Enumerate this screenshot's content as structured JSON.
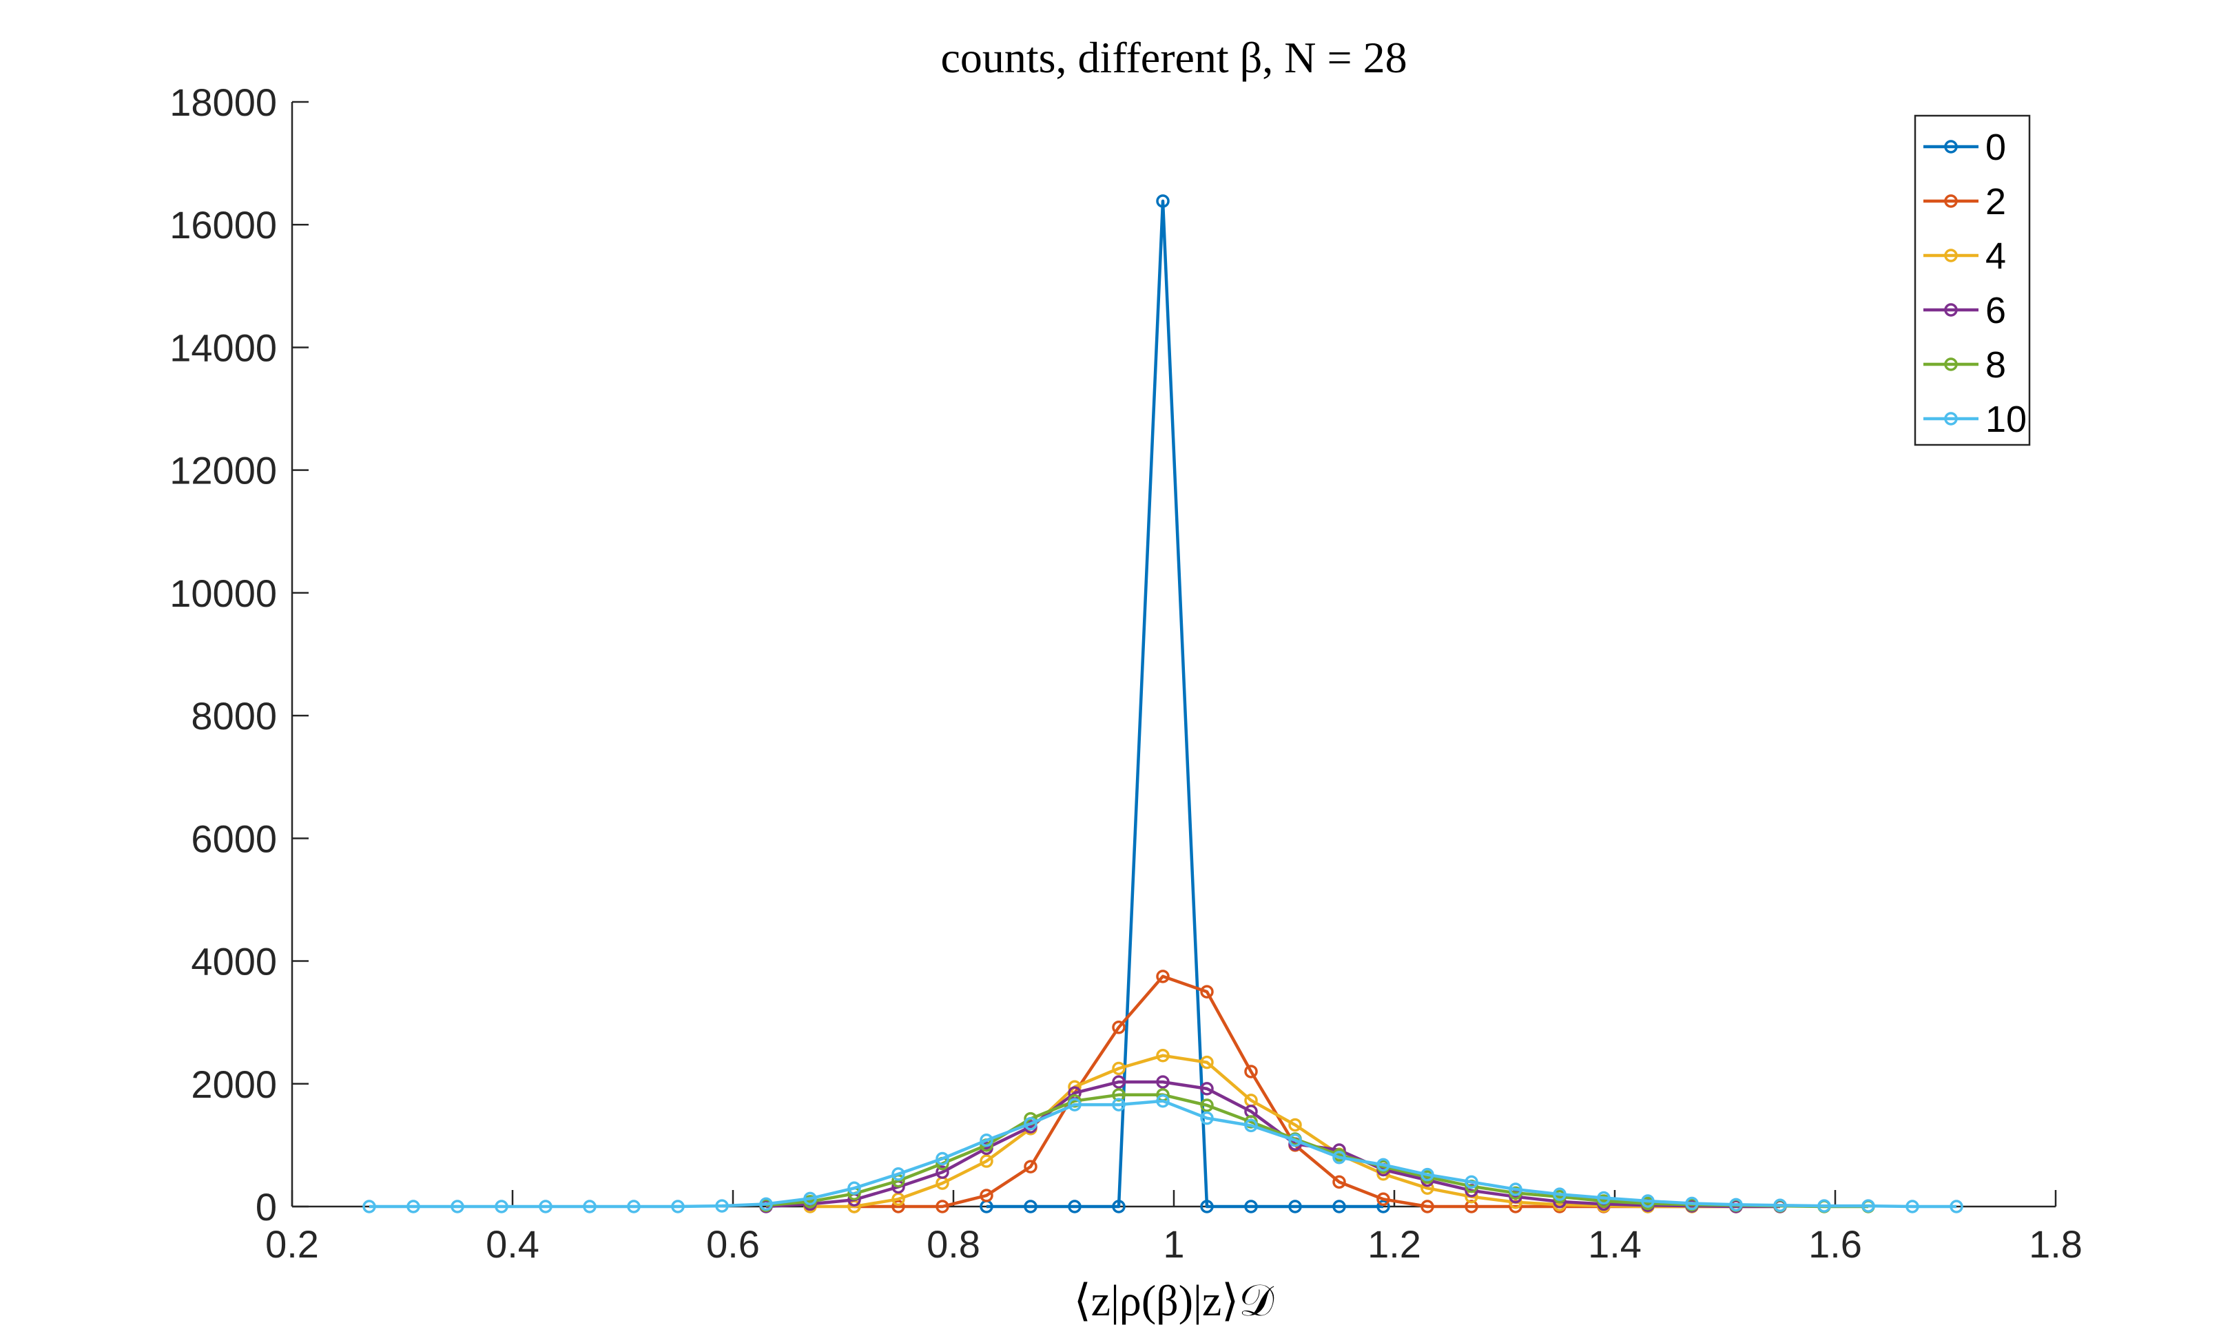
{
  "chart_data": {
    "type": "line",
    "title": "counts, different β, N = 28",
    "xlabel": "⟨z|ρ(β)|z⟩𝒟",
    "ylabel": "",
    "xlim": [
      0.2,
      1.8
    ],
    "ylim": [
      0,
      18000
    ],
    "xticks": [
      "0.2",
      "0.4",
      "0.6",
      "0.8",
      "1",
      "1.2",
      "1.4",
      "1.6",
      "1.8"
    ],
    "yticks": [
      "0",
      "2000",
      "4000",
      "6000",
      "8000",
      "10000",
      "12000",
      "14000",
      "16000",
      "18000"
    ],
    "grid": false,
    "legend_position": "top-right",
    "series": [
      {
        "name": "0",
        "color": "#0072BD",
        "x": [
          0.83,
          0.87,
          0.91,
          0.95,
          0.99,
          1.03,
          1.07,
          1.11,
          1.15,
          1.19
        ],
        "y": [
          0,
          0,
          0,
          0,
          16384,
          0,
          0,
          0,
          0,
          0
        ]
      },
      {
        "name": "2",
        "color": "#D95319",
        "x": [
          0.71,
          0.75,
          0.79,
          0.83,
          0.87,
          0.91,
          0.95,
          0.99,
          1.03,
          1.07,
          1.11,
          1.15,
          1.19,
          1.23,
          1.27,
          1.31,
          1.35,
          1.39,
          1.43,
          1.47,
          1.51
        ],
        "y": [
          0,
          0,
          0,
          180,
          650,
          1850,
          2920,
          3750,
          3500,
          2200,
          1000,
          400,
          120,
          0,
          0,
          0,
          0,
          0,
          0,
          0,
          0
        ]
      },
      {
        "name": "4",
        "color": "#EDB120",
        "x": [
          0.67,
          0.71,
          0.75,
          0.79,
          0.83,
          0.87,
          0.91,
          0.95,
          0.99,
          1.03,
          1.07,
          1.11,
          1.15,
          1.19,
          1.23,
          1.27,
          1.31,
          1.35,
          1.39,
          1.43,
          1.47,
          1.51,
          1.55
        ],
        "y": [
          0,
          0,
          120,
          380,
          740,
          1270,
          1950,
          2250,
          2460,
          2350,
          1730,
          1330,
          850,
          530,
          300,
          160,
          70,
          30,
          10,
          0,
          0,
          0,
          0
        ]
      },
      {
        "name": "6",
        "color": "#7E2F8E",
        "x": [
          0.63,
          0.67,
          0.71,
          0.75,
          0.79,
          0.83,
          0.87,
          0.91,
          0.95,
          0.99,
          1.03,
          1.07,
          1.11,
          1.15,
          1.19,
          1.23,
          1.27,
          1.31,
          1.35,
          1.39,
          1.43,
          1.47,
          1.51,
          1.55
        ],
        "y": [
          0,
          40,
          110,
          320,
          560,
          950,
          1300,
          1850,
          2030,
          2030,
          1920,
          1550,
          1020,
          920,
          600,
          430,
          260,
          160,
          80,
          40,
          20,
          10,
          0,
          0
        ]
      },
      {
        "name": "8",
        "color": "#77AC30",
        "x": [
          0.63,
          0.67,
          0.71,
          0.75,
          0.79,
          0.83,
          0.87,
          0.91,
          0.95,
          0.99,
          1.03,
          1.07,
          1.11,
          1.15,
          1.19,
          1.23,
          1.27,
          1.31,
          1.35,
          1.39,
          1.43,
          1.47,
          1.51,
          1.55,
          1.59,
          1.63
        ],
        "y": [
          20,
          80,
          210,
          420,
          700,
          1000,
          1430,
          1720,
          1820,
          1820,
          1650,
          1380,
          1100,
          840,
          650,
          480,
          330,
          220,
          160,
          90,
          50,
          30,
          20,
          10,
          0,
          0
        ]
      },
      {
        "name": "10",
        "color": "#4DBEEE",
        "x": [
          0.27,
          0.31,
          0.35,
          0.39,
          0.43,
          0.47,
          0.51,
          0.55,
          0.59,
          0.63,
          0.67,
          0.71,
          0.75,
          0.79,
          0.83,
          0.87,
          0.91,
          0.95,
          0.99,
          1.03,
          1.07,
          1.11,
          1.15,
          1.19,
          1.23,
          1.27,
          1.31,
          1.35,
          1.39,
          1.43,
          1.47,
          1.51,
          1.55,
          1.59,
          1.63,
          1.67,
          1.71
        ],
        "y": [
          0,
          0,
          0,
          0,
          0,
          0,
          0,
          0,
          10,
          40,
          130,
          300,
          530,
          780,
          1080,
          1350,
          1660,
          1660,
          1720,
          1440,
          1320,
          1080,
          800,
          680,
          520,
          400,
          280,
          200,
          140,
          90,
          50,
          30,
          20,
          10,
          10,
          0,
          0
        ]
      }
    ]
  }
}
